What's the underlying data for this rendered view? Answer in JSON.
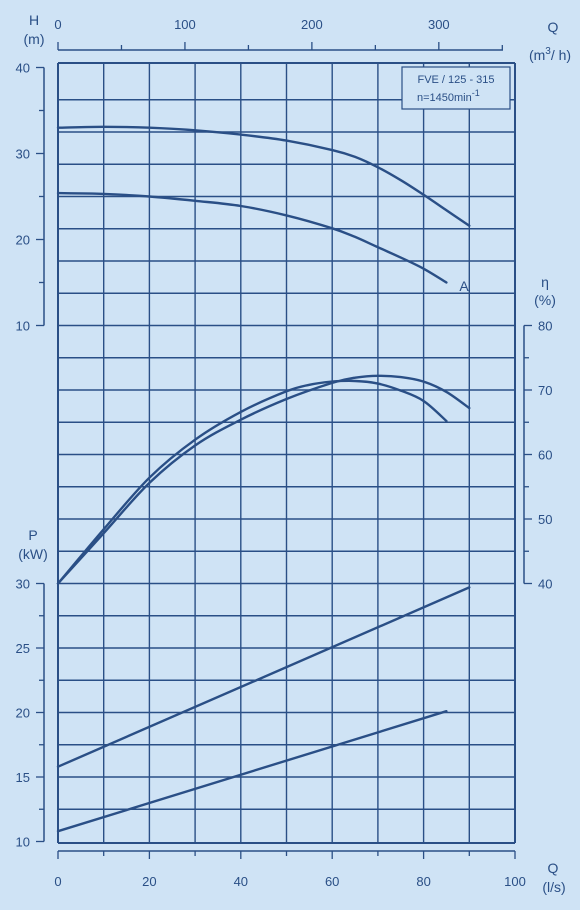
{
  "colors": {
    "background": "#cfe3f5",
    "ink": "#2a4f86"
  },
  "info_box": {
    "model": "FVE / 125 - 315",
    "speed": "n=1450min",
    "speed_exp": "-1"
  },
  "axes": {
    "q_ls": {
      "label": "Q",
      "unit": "(l/s)",
      "range": [
        0,
        100
      ],
      "ticks": [
        "0",
        "20",
        "40",
        "60",
        "80",
        "100"
      ]
    },
    "q_m3h": {
      "label": "Q",
      "unit_base": "(m",
      "unit_exp": "3",
      "unit_tail": "/ h)",
      "range": [
        0,
        360
      ],
      "ticks": [
        "0",
        "100",
        "200",
        "300"
      ]
    },
    "head": {
      "label": "H",
      "unit": "(m)",
      "range": [
        10,
        40
      ],
      "ticks": [
        "10",
        "20",
        "30",
        "40"
      ]
    },
    "efficiency": {
      "label": "η",
      "unit": "(%)",
      "range": [
        40,
        80
      ],
      "ticks": [
        "40",
        "50",
        "60",
        "70",
        "80"
      ]
    },
    "power": {
      "label": "P",
      "unit": "(kW)",
      "range": [
        10,
        30
      ],
      "ticks": [
        "10",
        "15",
        "20",
        "25",
        "30"
      ]
    }
  },
  "chart_data": {
    "type": "line",
    "title": "FVE / 125 - 315",
    "subtitle": "n=1450min-1",
    "xlabel": "Q (l/s)",
    "x2label": "Q (m3/h)",
    "xlim": [
      0,
      100
    ],
    "grid": true,
    "panels": [
      {
        "name": "head",
        "ylabel": "H (m)",
        "ylim": [
          10,
          40
        ],
        "series": [
          {
            "points": [
              [
                0,
                33.0
              ],
              [
                10,
                33.1
              ],
              [
                20,
                33.0
              ],
              [
                30,
                32.7
              ],
              [
                40,
                32.2
              ],
              [
                50,
                31.5
              ],
              [
                60,
                30.4
              ],
              [
                65,
                29.6
              ],
              [
                70,
                28.4
              ],
              [
                75,
                26.9
              ],
              [
                80,
                25.2
              ],
              [
                85,
                23.4
              ],
              [
                90,
                21.6
              ]
            ]
          },
          {
            "name": "A",
            "points": [
              [
                0,
                25.4
              ],
              [
                10,
                25.3
              ],
              [
                20,
                25.0
              ],
              [
                30,
                24.5
              ],
              [
                40,
                23.9
              ],
              [
                50,
                22.8
              ],
              [
                60,
                21.3
              ],
              [
                65,
                20.3
              ],
              [
                70,
                19.1
              ],
              [
                75,
                17.9
              ],
              [
                80,
                16.6
              ],
              [
                85,
                15.0
              ]
            ]
          }
        ]
      },
      {
        "name": "efficiency",
        "ylabel": "η (%)",
        "ylim": [
          40,
          80
        ],
        "series": [
          {
            "points": [
              [
                0,
                40.0
              ],
              [
                10,
                48.4
              ],
              [
                20,
                56.4
              ],
              [
                30,
                62.3
              ],
              [
                40,
                66.6
              ],
              [
                50,
                69.8
              ],
              [
                55,
                70.8
              ],
              [
                60,
                71.3
              ],
              [
                65,
                71.4
              ],
              [
                70,
                71.0
              ],
              [
                75,
                69.9
              ],
              [
                80,
                68.3
              ],
              [
                85,
                65.2
              ]
            ]
          },
          {
            "points": [
              [
                0,
                40.0
              ],
              [
                10,
                47.8
              ],
              [
                20,
                55.6
              ],
              [
                30,
                61.4
              ],
              [
                40,
                65.4
              ],
              [
                50,
                68.6
              ],
              [
                60,
                71.1
              ],
              [
                65,
                71.9
              ],
              [
                70,
                72.2
              ],
              [
                75,
                72.0
              ],
              [
                80,
                71.3
              ],
              [
                85,
                69.7
              ],
              [
                90,
                67.2
              ]
            ]
          }
        ]
      },
      {
        "name": "power",
        "ylabel": "P (kW)",
        "ylim": [
          10,
          30
        ],
        "series": [
          {
            "points": [
              [
                0,
                15.8
              ],
              [
                90,
                29.7
              ]
            ]
          },
          {
            "points": [
              [
                0,
                10.8
              ],
              [
                85,
                20.1
              ]
            ]
          }
        ]
      }
    ]
  }
}
